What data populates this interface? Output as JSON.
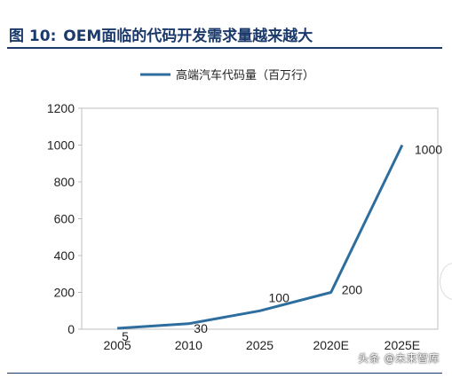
{
  "figure": {
    "number": "图 10:",
    "title": "OEM面临的代码开发需求量越来越大"
  },
  "watermark": "头条 @未来智库",
  "colors": {
    "line": "#2e6e9e",
    "title": "#1b3a6b",
    "axis": "#bfbfbf",
    "text": "#222222"
  },
  "chart_data": {
    "type": "line",
    "title": "",
    "xlabel": "",
    "ylabel": "",
    "categories": [
      "2005",
      "2010",
      "2025",
      "2020E",
      "2025E"
    ],
    "series": [
      {
        "name": "高端汽车代码量（百万行）",
        "values": [
          5,
          30,
          100,
          200,
          1000
        ]
      }
    ],
    "data_labels": [
      "5",
      "30",
      "100",
      "200",
      "1000"
    ],
    "ylim": [
      0,
      1200
    ],
    "yticks": [
      0,
      200,
      400,
      600,
      800,
      1000,
      1200
    ],
    "grid": false,
    "legend_position": "top-center"
  }
}
